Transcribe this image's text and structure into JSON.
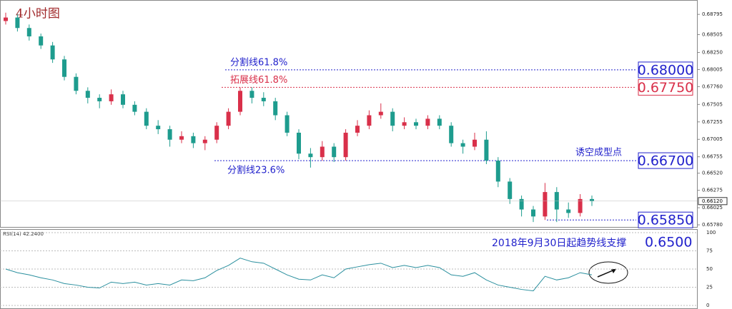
{
  "chart_data": [
    {
      "type": "candlestick",
      "title": "4小时图",
      "open": [
        0.687,
        0.6875,
        0.686,
        0.6848,
        0.6835,
        0.6815,
        0.679,
        0.677,
        0.676,
        0.6755,
        0.6765,
        0.675,
        0.674,
        0.672,
        0.6715,
        0.67,
        0.6705,
        0.6695,
        0.67,
        0.672,
        0.674,
        0.677,
        0.676,
        0.6755,
        0.6735,
        0.671,
        0.668,
        0.6675,
        0.669,
        0.6675,
        0.671,
        0.672,
        0.6735,
        0.674,
        0.672,
        0.6725,
        0.672,
        0.673,
        0.672,
        0.6695,
        0.669,
        0.67,
        0.667,
        0.664,
        0.6615,
        0.66,
        0.659,
        0.6625,
        0.66,
        0.6595,
        0.6615
      ],
      "high": [
        0.6882,
        0.688,
        0.6865,
        0.6852,
        0.684,
        0.682,
        0.6795,
        0.6775,
        0.6765,
        0.6772,
        0.677,
        0.6755,
        0.6745,
        0.6728,
        0.672,
        0.6712,
        0.671,
        0.6705,
        0.6725,
        0.6745,
        0.6775,
        0.6775,
        0.6768,
        0.676,
        0.674,
        0.6715,
        0.6688,
        0.6698,
        0.6695,
        0.6715,
        0.6728,
        0.6742,
        0.6752,
        0.6745,
        0.6732,
        0.673,
        0.6735,
        0.6735,
        0.6725,
        0.67,
        0.671,
        0.6712,
        0.6675,
        0.6645,
        0.662,
        0.6605,
        0.6638,
        0.6632,
        0.661,
        0.6622,
        0.662
      ],
      "low": [
        0.6865,
        0.6855,
        0.6842,
        0.683,
        0.681,
        0.6785,
        0.6765,
        0.6752,
        0.6745,
        0.675,
        0.6745,
        0.6735,
        0.6715,
        0.6708,
        0.669,
        0.6695,
        0.6688,
        0.6685,
        0.6695,
        0.6715,
        0.6735,
        0.6752,
        0.6748,
        0.6728,
        0.6705,
        0.6672,
        0.666,
        0.667,
        0.6668,
        0.667,
        0.6705,
        0.6715,
        0.673,
        0.6712,
        0.6715,
        0.6715,
        0.6715,
        0.6715,
        0.669,
        0.668,
        0.6685,
        0.6665,
        0.6632,
        0.6608,
        0.659,
        0.6582,
        0.6585,
        0.6582,
        0.6588,
        0.659,
        0.6605
      ],
      "close": [
        0.6875,
        0.686,
        0.6848,
        0.6835,
        0.6815,
        0.679,
        0.677,
        0.676,
        0.6755,
        0.6765,
        0.675,
        0.674,
        0.672,
        0.6715,
        0.67,
        0.6705,
        0.6695,
        0.67,
        0.672,
        0.674,
        0.677,
        0.676,
        0.6755,
        0.6735,
        0.671,
        0.668,
        0.6675,
        0.669,
        0.6675,
        0.671,
        0.672,
        0.6735,
        0.674,
        0.672,
        0.6725,
        0.672,
        0.673,
        0.672,
        0.6695,
        0.669,
        0.67,
        0.667,
        0.664,
        0.6615,
        0.66,
        0.659,
        0.6625,
        0.66,
        0.6595,
        0.6615,
        0.6612
      ],
      "up_color": "#d9304a",
      "down_color": "#1e9c8e",
      "ylim": [
        0.6575,
        0.6895
      ],
      "yticks": [
        0.68795,
        0.68505,
        {
          "value": 0.6825,
          "label": "0.68250"
        },
        0.68005,
        {
          "value": 0.6776,
          "label": "0.67760"
        },
        0.67505,
        0.67255,
        0.67005,
        0.66755,
        {
          "value": 0.6652,
          "label": "0.66520"
        },
        0.66275,
        0.66025,
        {
          "value": 0.6578,
          "label": "0.65780"
        }
      ],
      "last_price": {
        "value": 0.6612,
        "label": "0.66120"
      },
      "levels": [
        {
          "value": 0.68,
          "label": "0.68000",
          "text": "分割线61.8%",
          "color": "#2222cc"
        },
        {
          "value": 0.6775,
          "label": "0.67750",
          "text": "拓展线61.8%",
          "color": "#d9304a"
        },
        {
          "value": 0.667,
          "label": "0.66700",
          "text": "分割线23.6%",
          "color": "#2222cc"
        },
        {
          "value": 0.6585,
          "label": "0.65850",
          "color": "#2222cc"
        }
      ],
      "annotation": "诱空成型点"
    },
    {
      "type": "line",
      "title": "RSI(14) 42.2400",
      "color": "#2a8f9e",
      "values": [
        50,
        45,
        42,
        38,
        35,
        30,
        28,
        25,
        24,
        32,
        30,
        32,
        28,
        30,
        28,
        35,
        34,
        38,
        48,
        55,
        65,
        60,
        58,
        50,
        42,
        36,
        35,
        42,
        38,
        50,
        53,
        56,
        58,
        52,
        55,
        52,
        55,
        52,
        42,
        40,
        45,
        35,
        28,
        25,
        22,
        20,
        40,
        35,
        38,
        45,
        42
      ],
      "ylim": [
        0,
        100
      ],
      "yticks": [
        0,
        25,
        50,
        75,
        100
      ],
      "grid": true,
      "annotation": "2018年9月30日起趋势线支撑",
      "support_label": "0.6500"
    }
  ]
}
